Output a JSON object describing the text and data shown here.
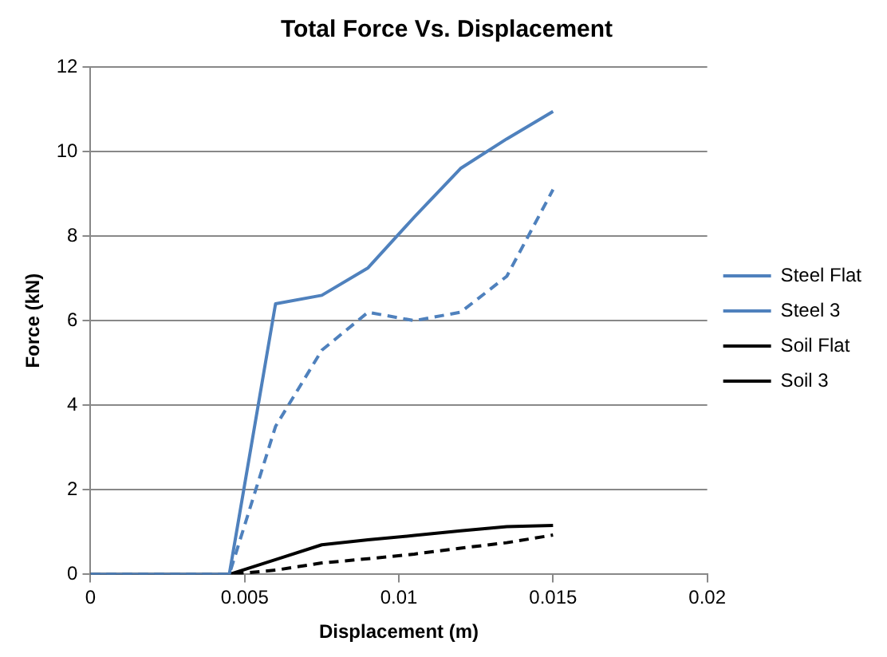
{
  "chart_data": {
    "type": "line",
    "title": "Total Force Vs. Displacement",
    "xlabel": "Displacement (m)",
    "ylabel": "Force (kN)",
    "x": [
      0,
      0.0045,
      0.006,
      0.0075,
      0.009,
      0.0105,
      0.012,
      0.0135,
      0.015
    ],
    "series": [
      {
        "name": "Steel Flat",
        "color": "#4f81bd",
        "line_style": "solid",
        "values": [
          0,
          0,
          6.4,
          6.6,
          7.25,
          8.45,
          9.6,
          10.3,
          10.95
        ]
      },
      {
        "name": "Steel 3",
        "color": "#4f81bd",
        "line_style": "dashed",
        "values": [
          0,
          0,
          3.5,
          5.3,
          6.2,
          6.0,
          6.2,
          7.05,
          9.1
        ]
      },
      {
        "name": "Soil Flat",
        "color": "#000000",
        "line_style": "solid",
        "values": [
          0,
          0,
          0.35,
          0.7,
          0.82,
          0.92,
          1.03,
          1.13,
          1.16
        ]
      },
      {
        "name": "Soil 3",
        "color": "#000000",
        "line_style": "dashed",
        "values": [
          0,
          0,
          0.1,
          0.27,
          0.37,
          0.48,
          0.62,
          0.75,
          0.93
        ]
      }
    ],
    "xlim": [
      0,
      0.02
    ],
    "xticks": [
      0,
      0.005,
      0.01,
      0.015,
      0.02
    ],
    "ylim": [
      0,
      12
    ],
    "yticks": [
      0,
      2,
      4,
      6,
      8,
      10,
      12
    ],
    "grid": "y",
    "legend": "right",
    "marker": "none"
  }
}
